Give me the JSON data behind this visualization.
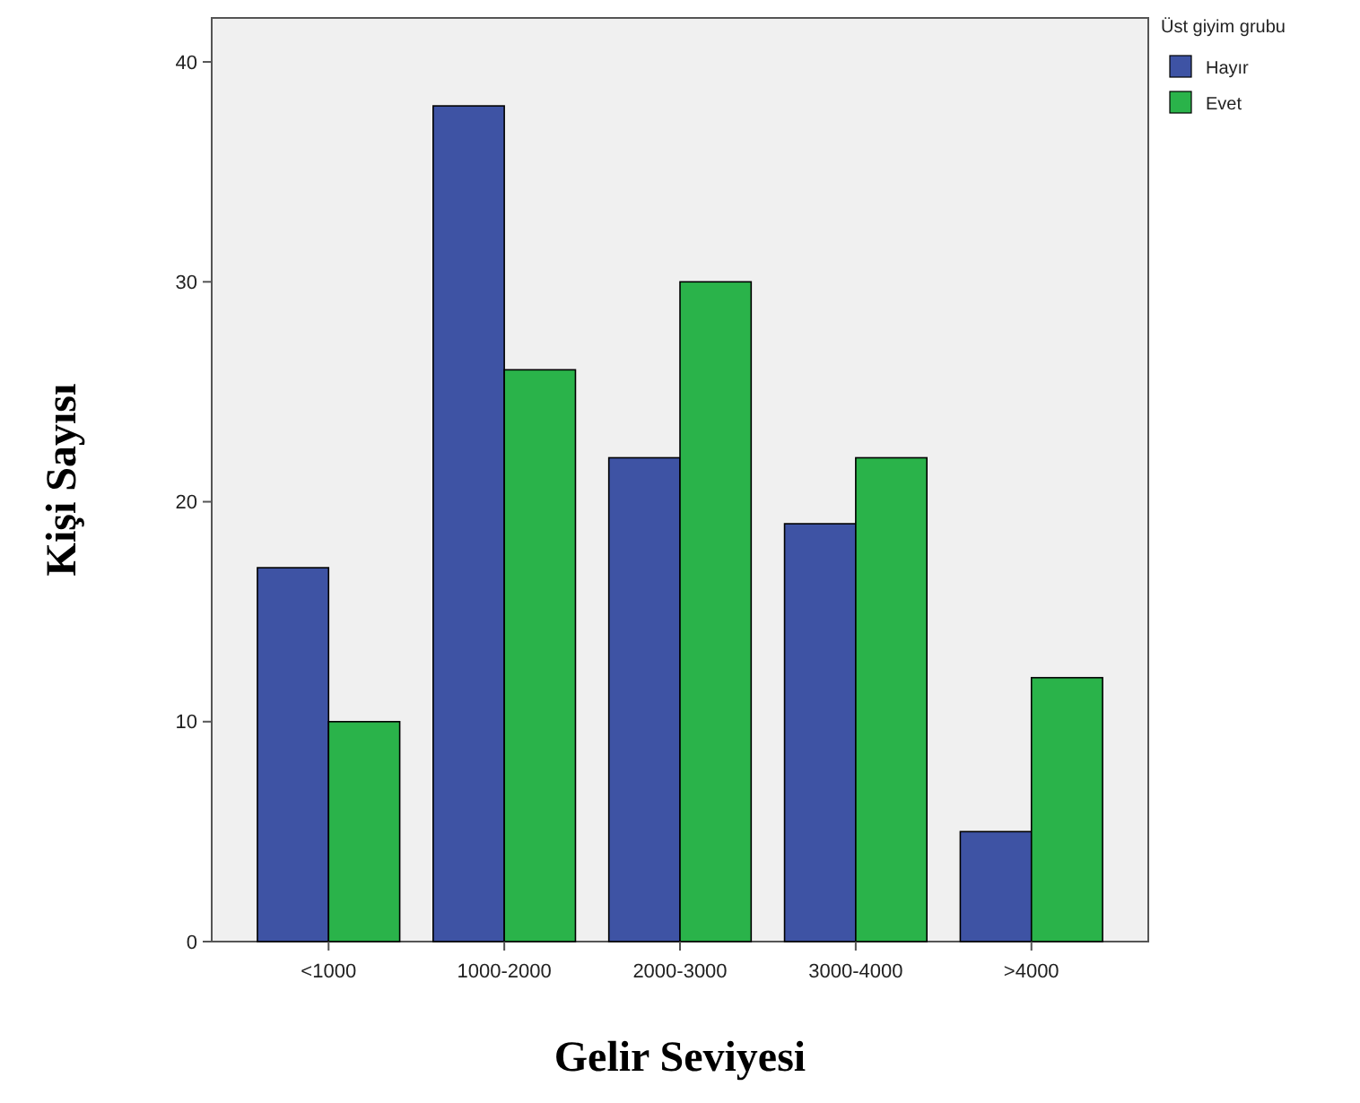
{
  "chart_data": {
    "type": "bar",
    "xlabel": "Gelir Seviyesi",
    "ylabel": "Kişi Sayısı",
    "legend_title": "Üst giyim grubu",
    "categories": [
      "<1000",
      "1000-2000",
      "2000-3000",
      "3000-4000",
      ">4000"
    ],
    "series": [
      {
        "name": "Hayır",
        "color": "#3e53a4",
        "values": [
          17,
          38,
          22,
          19,
          5
        ]
      },
      {
        "name": "Evet",
        "color": "#2ab34a",
        "values": [
          10,
          26,
          30,
          22,
          12
        ]
      }
    ],
    "ylim": [
      0,
      42
    ],
    "yticks": [
      0,
      10,
      20,
      30,
      40
    ],
    "grid": false,
    "legend": "top right"
  }
}
